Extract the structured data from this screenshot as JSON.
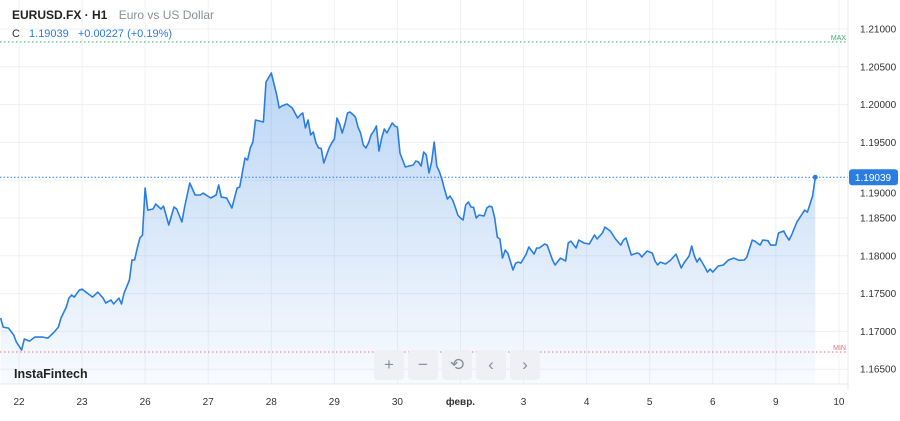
{
  "header": {
    "symbol": "EURUSD.FX · H1",
    "description": "Euro vs US Dollar",
    "close_label": "C",
    "close_value": "1.19039",
    "change": "+0.00227 (+0.19%)"
  },
  "watermark": "InstaFintech",
  "controls": [
    {
      "label": "+",
      "icon": "zoom-in-icon"
    },
    {
      "label": "−",
      "icon": "zoom-out-icon"
    },
    {
      "label": "⟲",
      "icon": "reset-icon"
    },
    {
      "label": "‹",
      "icon": "scroll-left-icon"
    },
    {
      "label": "›",
      "icon": "scroll-right-icon"
    }
  ],
  "colors": {
    "line": "#2a7de1",
    "max": "#3fae6a",
    "min": "#e8707a",
    "last_price_bg": "#2a7de1"
  },
  "chart_data": {
    "type": "area",
    "ylim": [
      1.1635,
      1.212
    ],
    "y_ticks": [
      "1.21000",
      "1.20500",
      "1.20000",
      "1.19500",
      "1.19000",
      "1.18500",
      "1.18000",
      "1.17500",
      "1.17000",
      "1.16500"
    ],
    "x_ticks": [
      "22",
      "23",
      "26",
      "27",
      "28",
      "29",
      "30",
      "февр.",
      "3",
      "4",
      "5",
      "6",
      "9",
      "10"
    ],
    "grid": true,
    "last_price": "1.19039",
    "max_label": "MAX",
    "max_value": 1.20828,
    "min_label": "MIN",
    "min_value": 1.16727,
    "points": [
      [
        "21 17:00",
        1.17177
      ],
      [
        "21 18:00",
        1.17057
      ],
      [
        "21 20:00",
        1.17044
      ],
      [
        "21 22:00",
        1.16952
      ],
      [
        "21 23:00",
        1.16859
      ],
      [
        "22 01:00",
        1.16753
      ],
      [
        "22 02:00",
        1.16899
      ],
      [
        "22 04:00",
        1.16872
      ],
      [
        "22 06:00",
        1.16925
      ],
      [
        "22 09:00",
        1.16925
      ],
      [
        "22 11:00",
        1.16912
      ],
      [
        "22 13:00",
        1.16978
      ],
      [
        "22 15:00",
        1.17057
      ],
      [
        "22 16:00",
        1.17177
      ],
      [
        "22 18:00",
        1.17322
      ],
      [
        "22 19:00",
        1.17441
      ],
      [
        "22 20:00",
        1.17481
      ],
      [
        "22 21:00",
        1.17454
      ],
      [
        "22 23:00",
        1.17547
      ],
      [
        "23 00:00",
        1.1756
      ],
      [
        "23 02:00",
        1.17507
      ],
      [
        "23 04:00",
        1.17454
      ],
      [
        "23 06:00",
        1.1752
      ],
      [
        "23 08:00",
        1.17441
      ],
      [
        "23 09:00",
        1.17375
      ],
      [
        "23 11:00",
        1.17415
      ],
      [
        "23 12:00",
        1.17362
      ],
      [
        "23 14:00",
        1.17441
      ],
      [
        "23 15:00",
        1.17362
      ],
      [
        "23 16:00",
        1.17507
      ],
      [
        "23 18:00",
        1.17679
      ],
      [
        "23 19:00",
        1.17944
      ],
      [
        "23 20:00",
        1.17944
      ],
      [
        "23 21:00",
        1.18103
      ],
      [
        "23 22:00",
        1.18235
      ],
      [
        "23 23:00",
        1.18275
      ],
      [
        "26 00:00",
        1.18896
      ],
      [
        "26 01:00",
        1.18605
      ],
      [
        "26 03:00",
        1.18619
      ],
      [
        "26 04:00",
        1.18685
      ],
      [
        "26 06:00",
        1.18619
      ],
      [
        "26 07:00",
        1.18658
      ],
      [
        "26 09:00",
        1.18407
      ],
      [
        "26 11:00",
        1.18645
      ],
      [
        "26 12:00",
        1.18619
      ],
      [
        "26 14:00",
        1.18447
      ],
      [
        "26 15:00",
        1.18645
      ],
      [
        "26 17:00",
        1.18963
      ],
      [
        "26 19:00",
        1.18804
      ],
      [
        "26 21:00",
        1.18804
      ],
      [
        "26 22:00",
        1.1883
      ],
      [
        "27 01:00",
        1.18764
      ],
      [
        "27 03:00",
        1.18804
      ],
      [
        "27 04:00",
        1.18936
      ],
      [
        "27 05:00",
        1.18777
      ],
      [
        "27 07:00",
        1.18764
      ],
      [
        "27 09:00",
        1.18632
      ],
      [
        "27 11:00",
        1.18896
      ],
      [
        "27 12:00",
        1.1891
      ],
      [
        "27 14:00",
        1.19293
      ],
      [
        "27 15:00",
        1.19267
      ],
      [
        "27 16:00",
        1.19426
      ],
      [
        "27 17:00",
        1.19505
      ],
      [
        "27 18:00",
        1.19796
      ],
      [
        "27 21:00",
        1.1977
      ],
      [
        "27 22:00",
        1.20299
      ],
      [
        "28 00:00",
        1.20418
      ],
      [
        "28 02:00",
        1.2014
      ],
      [
        "28 03:00",
        1.19955
      ],
      [
        "28 04:00",
        1.19981
      ],
      [
        "28 06:00",
        1.20008
      ],
      [
        "28 08:00",
        1.19955
      ],
      [
        "28 10:00",
        1.19823
      ],
      [
        "28 11:00",
        1.19862
      ],
      [
        "28 12:00",
        1.19889
      ],
      [
        "28 13:00",
        1.1969
      ],
      [
        "28 14:00",
        1.19796
      ],
      [
        "28 15:00",
        1.19598
      ],
      [
        "28 16:00",
        1.19637
      ],
      [
        "28 17:00",
        1.19492
      ],
      [
        "28 18:00",
        1.19426
      ],
      [
        "28 19:00",
        1.1942
      ],
      [
        "28 20:00",
        1.19227
      ],
      [
        "28 22:00",
        1.19426
      ],
      [
        "28 23:00",
        1.19492
      ],
      [
        "29 00:00",
        1.19545
      ],
      [
        "29 01:00",
        1.19823
      ],
      [
        "29 02:00",
        1.19743
      ],
      [
        "29 03:00",
        1.19624
      ],
      [
        "29 04:00",
        1.19743
      ],
      [
        "29 05:00",
        1.19889
      ],
      [
        "29 06:00",
        1.19902
      ],
      [
        "29 08:00",
        1.19836
      ],
      [
        "29 09:00",
        1.19703
      ],
      [
        "29 10:00",
        1.19624
      ],
      [
        "29 11:00",
        1.19465
      ],
      [
        "29 12:00",
        1.19426
      ],
      [
        "29 13:00",
        1.19492
      ],
      [
        "29 14:00",
        1.19598
      ],
      [
        "29 15:00",
        1.1965
      ],
      [
        "29 16:00",
        1.19717
      ],
      [
        "29 17:00",
        1.19386
      ],
      [
        "29 18:00",
        1.19558
      ],
      [
        "29 19:00",
        1.19677
      ],
      [
        "29 20:00",
        1.19624
      ],
      [
        "29 22:00",
        1.19756
      ],
      [
        "29 23:00",
        1.19717
      ],
      [
        "30 00:00",
        1.19703
      ],
      [
        "30 01:00",
        1.19359
      ],
      [
        "30 03:00",
        1.19174
      ],
      [
        "30 06:00",
        1.19201
      ],
      [
        "30 07:00",
        1.19254
      ],
      [
        "30 08:00",
        1.19241
      ],
      [
        "30 09:00",
        1.19187
      ],
      [
        "30 10:00",
        1.19373
      ],
      [
        "30 11:00",
        1.19333
      ],
      [
        "30 12:00",
        1.19095
      ],
      [
        "30 13:00",
        1.19241
      ],
      [
        "30 14:00",
        1.19505
      ],
      [
        "30 15:00",
        1.19187
      ],
      [
        "30 16:00",
        1.19108
      ],
      [
        "30 17:00",
        1.19002
      ],
      [
        "30 18:00",
        1.1887
      ],
      [
        "30 19:00",
        1.18751
      ],
      [
        "30 20:00",
        1.18791
      ],
      [
        "30 21:00",
        1.18738
      ],
      [
        "30 22:00",
        1.18645
      ],
      [
        "30 23:00",
        1.18539
      ],
      [
        "февр. 00:00",
        1.185
      ],
      [
        "февр. 01:00",
        1.18473
      ],
      [
        "февр. 02:00",
        1.18672
      ],
      [
        "февр. 03:00",
        1.18711
      ],
      [
        "февр. 04:00",
        1.18645
      ],
      [
        "февр. 05:00",
        1.1864
      ],
      [
        "февр. 06:00",
        1.185
      ],
      [
        "февр. 07:00",
        1.18539
      ],
      [
        "февр. 09:00",
        1.18526
      ],
      [
        "февр. 10:00",
        1.18632
      ],
      [
        "февр. 11:00",
        1.18658
      ],
      [
        "февр. 12:00",
        1.18645
      ],
      [
        "февр. 13:00",
        1.185
      ],
      [
        "февр. 14:00",
        1.18248
      ],
      [
        "февр. 15:00",
        1.18222
      ],
      [
        "февр. 16:00",
        1.1797
      ],
      [
        "февр. 17:00",
        1.18076
      ],
      [
        "февр. 18:00",
        1.18036
      ],
      [
        "февр. 20:00",
        1.17812
      ],
      [
        "февр. 21:00",
        1.17904
      ],
      [
        "февр. 22:00",
        1.17917
      ],
      [
        "февр. 23:00",
        1.17904
      ],
      [
        "3 01:00",
        1.18023
      ],
      [
        "3 02:00",
        1.18116
      ],
      [
        "3 04:00",
        1.18023
      ],
      [
        "3 05:00",
        1.18103
      ],
      [
        "3 06:00",
        1.18103
      ],
      [
        "3 08:00",
        1.18156
      ],
      [
        "3 09:00",
        1.18142
      ],
      [
        "3 11:00",
        1.17944
      ],
      [
        "3 12:00",
        1.17878
      ],
      [
        "3 14:00",
        1.1797
      ],
      [
        "3 16:00",
        1.17931
      ],
      [
        "3 17:00",
        1.18169
      ],
      [
        "3 18:00",
        1.18195
      ],
      [
        "3 20:00",
        1.18103
      ],
      [
        "3 21:00",
        1.18208
      ],
      [
        "3 23:00",
        1.18169
      ],
      [
        "4 01:00",
        1.18156
      ],
      [
        "4 03:00",
        1.18275
      ],
      [
        "4 04:00",
        1.18222
      ],
      [
        "4 06:00",
        1.18301
      ],
      [
        "4 07:00",
        1.1838
      ],
      [
        "4 09:00",
        1.18328
      ],
      [
        "4 11:00",
        1.18222
      ],
      [
        "4 13:00",
        1.18142
      ],
      [
        "4 14:00",
        1.18208
      ],
      [
        "4 15:00",
        1.18235
      ],
      [
        "4 17:00",
        1.1801
      ],
      [
        "4 19:00",
        1.18036
      ],
      [
        "4 20:00",
        1.1803
      ],
      [
        "4 21:00",
        1.17984
      ],
      [
        "4 23:00",
        1.18063
      ],
      [
        "5 01:00",
        1.18036
      ],
      [
        "5 02:00",
        1.17931
      ],
      [
        "5 03:00",
        1.17878
      ],
      [
        "5 04:00",
        1.17917
      ],
      [
        "5 06:00",
        1.17891
      ],
      [
        "5 08:00",
        1.17944
      ],
      [
        "5 10:00",
        1.18023
      ],
      [
        "5 12:00",
        1.17838
      ],
      [
        "5 13:00",
        1.17904
      ],
      [
        "5 15:00",
        1.17997
      ],
      [
        "5 16:00",
        1.18129
      ],
      [
        "5 17:00",
        1.17997
      ],
      [
        "5 18:00",
        1.17917
      ],
      [
        "5 19:00",
        1.1797
      ],
      [
        "5 21:00",
        1.17851
      ],
      [
        "5 22:00",
        1.17785
      ],
      [
        "5 23:00",
        1.17825
      ],
      [
        "6 00:00",
        1.17785
      ],
      [
        "6 02:00",
        1.17864
      ],
      [
        "6 04:00",
        1.17878
      ],
      [
        "6 06:00",
        1.17944
      ],
      [
        "6 08:00",
        1.1797
      ],
      [
        "6 10:00",
        1.1794
      ],
      [
        "6 12:00",
        1.17944
      ],
      [
        "6 13:00",
        1.17984
      ],
      [
        "6 15:00",
        1.18208
      ],
      [
        "6 16:00",
        1.18195
      ],
      [
        "6 18:00",
        1.18142
      ],
      [
        "6 19:00",
        1.18208
      ],
      [
        "6 21:00",
        1.182
      ],
      [
        "6 22:00",
        1.18142
      ],
      [
        "9 00:00",
        1.18142
      ],
      [
        "9 01:00",
        1.18301
      ],
      [
        "9 03:00",
        1.18328
      ],
      [
        "9 04:00",
        1.18261
      ],
      [
        "9 05:00",
        1.18208
      ],
      [
        "9 06:00",
        1.18275
      ],
      [
        "9 08:00",
        1.18447
      ],
      [
        "9 10:00",
        1.18552
      ],
      [
        "9 11:00",
        1.18605
      ],
      [
        "9 12:00",
        1.18578
      ],
      [
        "9 14:00",
        1.18791
      ],
      [
        "9 15:00",
        1.19039
      ]
    ]
  }
}
